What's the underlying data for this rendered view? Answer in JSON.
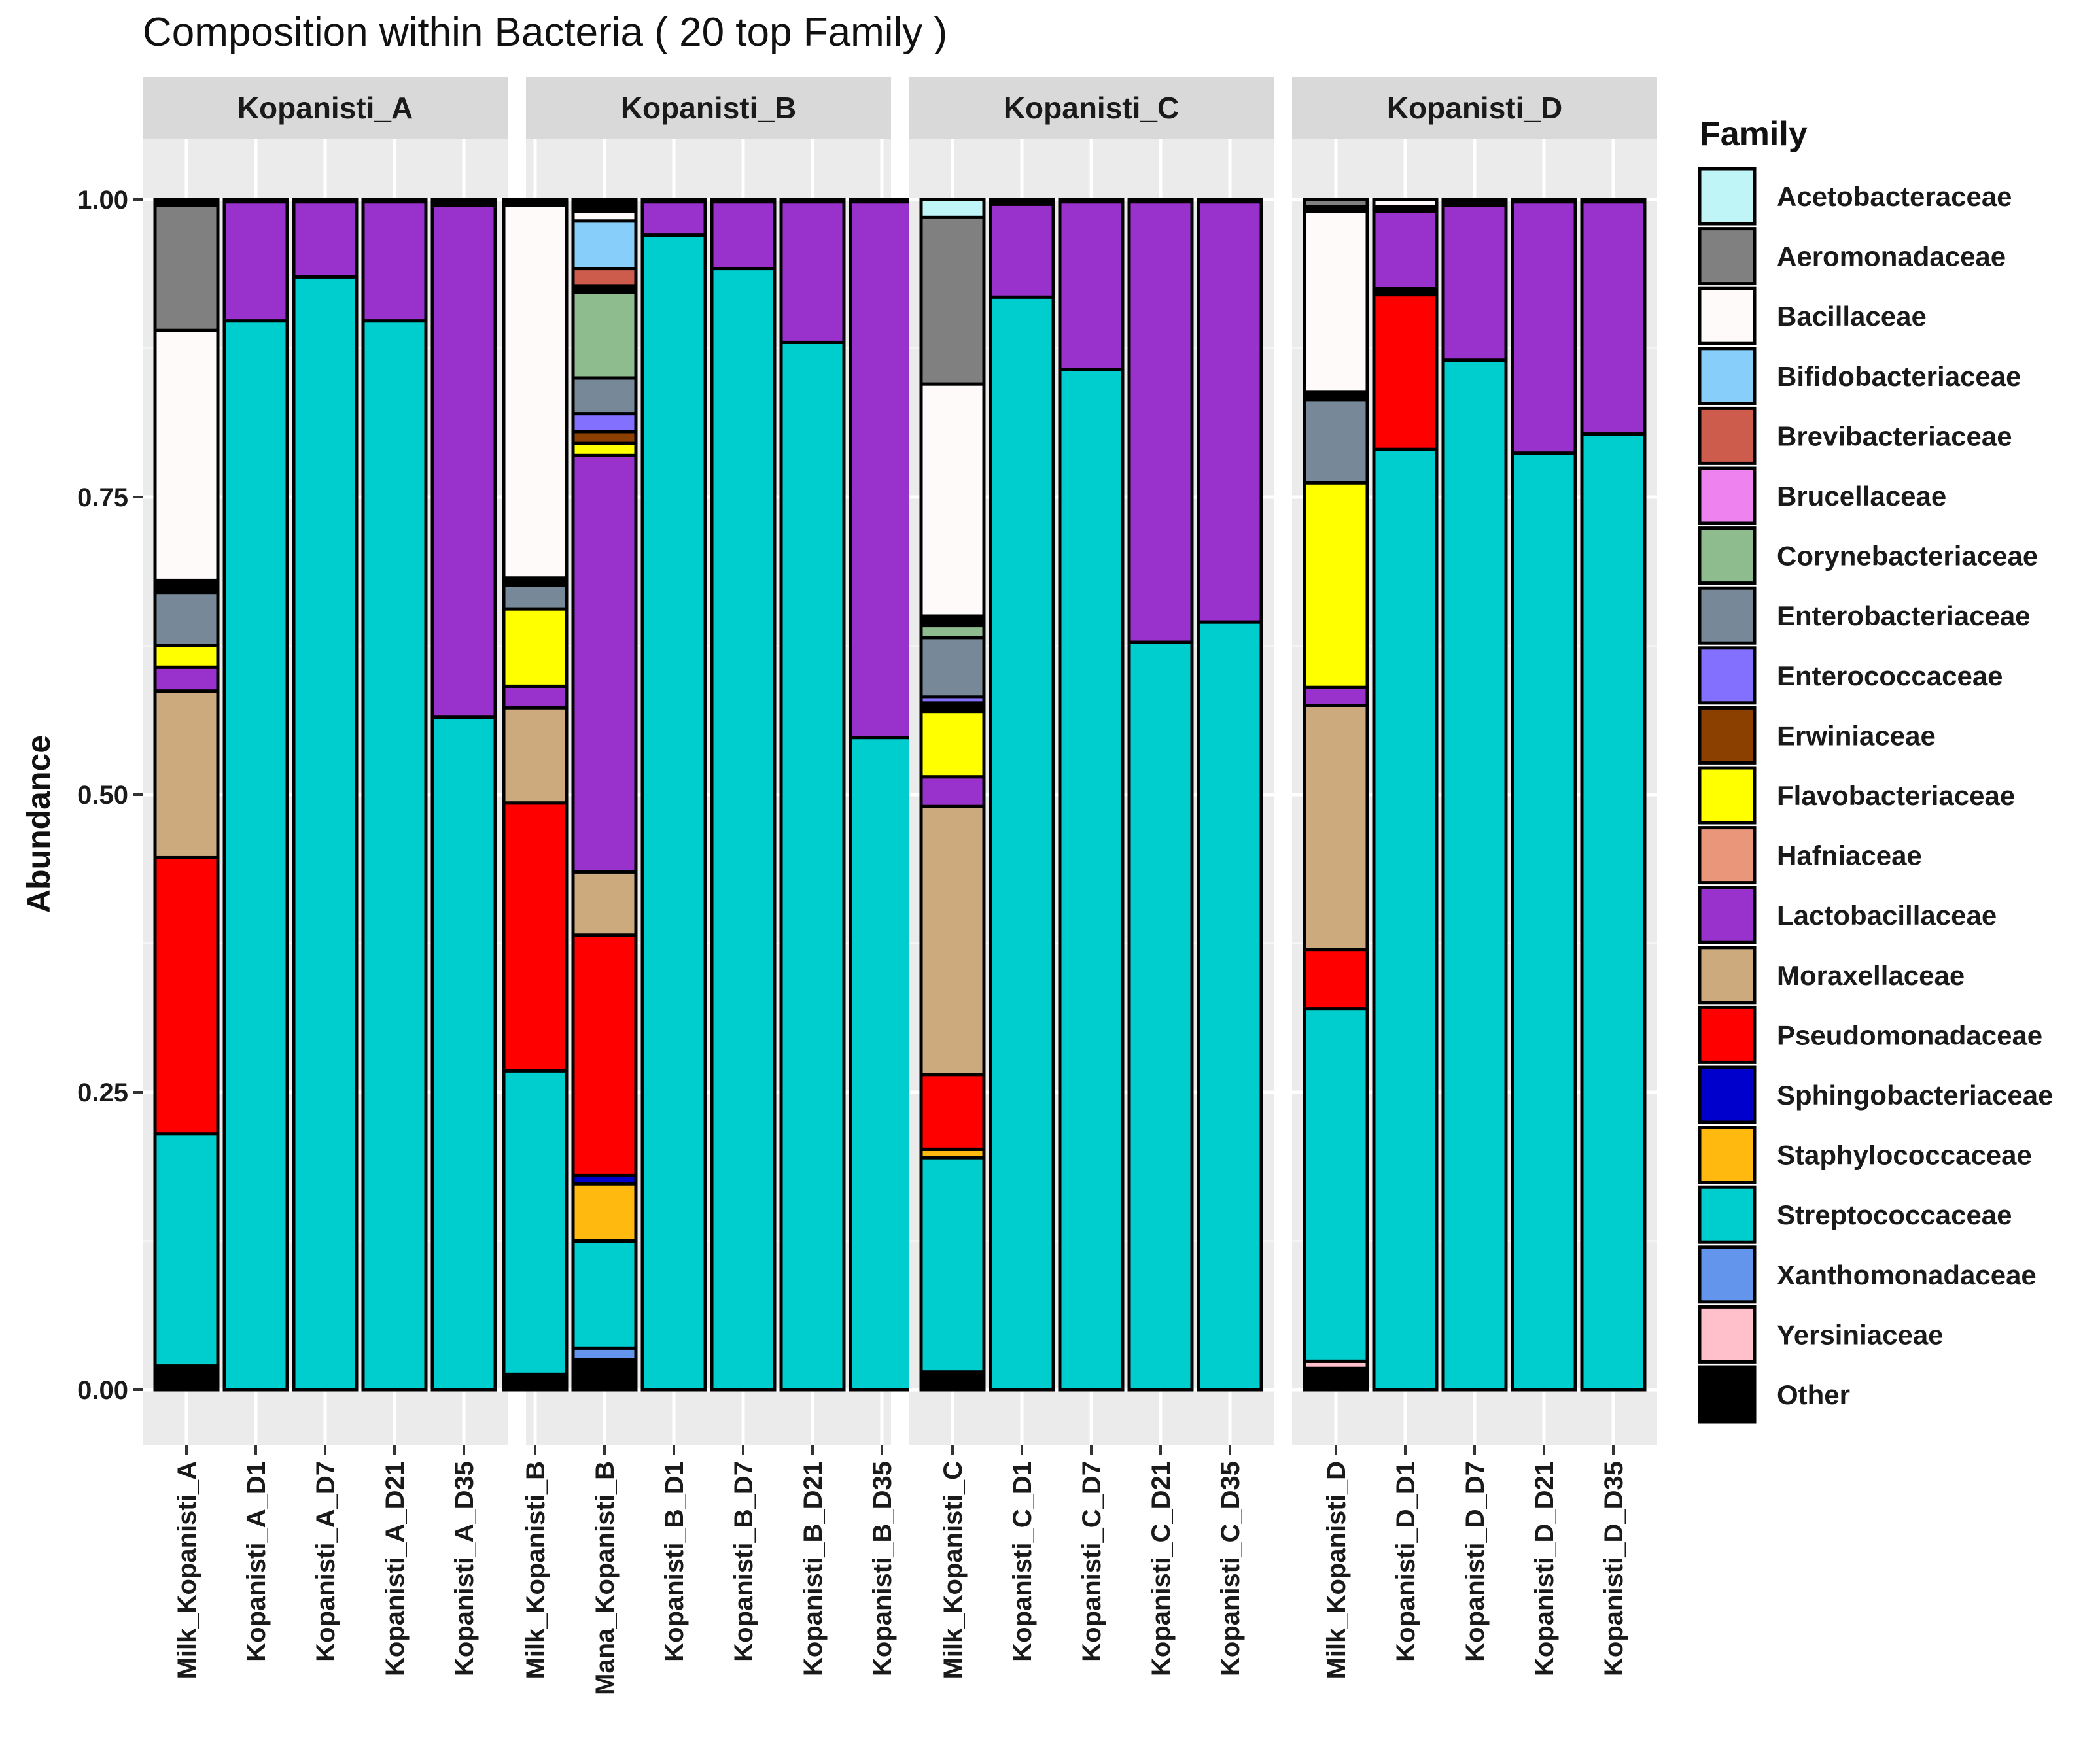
{
  "chart_data": {
    "type": "bar",
    "stacked": true,
    "title": "Composition within Bacteria ( 20 top Family )",
    "ylabel": "Abundance",
    "xlabel": "",
    "ylim": [
      0,
      1
    ],
    "yticks": [
      0,
      0.25,
      0.5,
      0.75,
      1
    ],
    "ytick_labels": [
      "0.00",
      "0.25",
      "0.50",
      "0.75",
      "1.00"
    ],
    "legend_title": "Family",
    "legend_position": "right",
    "families": [
      {
        "name": "Acetobacteraceae",
        "color": "#bff5f7"
      },
      {
        "name": "Aeromonadaceae",
        "color": "#808080"
      },
      {
        "name": "Bacillaceae",
        "color": "#fffafa"
      },
      {
        "name": "Bifidobacteriaceae",
        "color": "#87cefa"
      },
      {
        "name": "Brevibacteriaceae",
        "color": "#cd5c4c"
      },
      {
        "name": "Brucellaceae",
        "color": "#ee82ee"
      },
      {
        "name": "Corynebacteriaceae",
        "color": "#8fbc8f"
      },
      {
        "name": "Enterobacteriaceae",
        "color": "#778899"
      },
      {
        "name": "Enterococcaceae",
        "color": "#8470ff"
      },
      {
        "name": "Erwiniaceae",
        "color": "#8b4000"
      },
      {
        "name": "Flavobacteriaceae",
        "color": "#ffff00"
      },
      {
        "name": "Hafniaceae",
        "color": "#e9967a"
      },
      {
        "name": "Lactobacillaceae",
        "color": "#9932cc"
      },
      {
        "name": "Moraxellaceae",
        "color": "#cdaa7d"
      },
      {
        "name": "Pseudomonadaceae",
        "color": "#ff0000"
      },
      {
        "name": "Sphingobacteriaceae",
        "color": "#0000cd"
      },
      {
        "name": "Staphylococcaceae",
        "color": "#ffb90f"
      },
      {
        "name": "Streptococcaceae",
        "color": "#00cdcd"
      },
      {
        "name": "Xanthomonadaceae",
        "color": "#6495ed"
      },
      {
        "name": "Yersiniaceae",
        "color": "#ffc0cb"
      },
      {
        "name": "Other",
        "color": "#000000"
      }
    ],
    "panels": [
      {
        "strip": "Kopanisti_A",
        "samples": [
          {
            "label": "Milk_Kopanisti_A",
            "segments": [
              [
                "Other",
                0.02
              ],
              [
                "Streptococcaceae",
                0.195
              ],
              [
                "Pseudomonadaceae",
                0.232
              ],
              [
                "Moraxellaceae",
                0.14
              ],
              [
                "Lactobacillaceae",
                0.02
              ],
              [
                "Flavobacteriaceae",
                0.018
              ],
              [
                "Enterobacteriaceae",
                0.045
              ],
              [
                "Other",
                0.01
              ],
              [
                "Bacillaceae",
                0.21
              ],
              [
                "Aeromonadaceae",
                0.105
              ],
              [
                "Other",
                0.005
              ]
            ]
          },
          {
            "label": "Kopanisti_A_D1",
            "segments": [
              [
                "Streptococcaceae",
                0.898
              ],
              [
                "Lactobacillaceae",
                0.1
              ],
              [
                "Other",
                0.002
              ]
            ]
          },
          {
            "label": "Kopanisti_A_D7",
            "segments": [
              [
                "Streptococcaceae",
                0.935
              ],
              [
                "Lactobacillaceae",
                0.063
              ],
              [
                "Other",
                0.002
              ]
            ]
          },
          {
            "label": "Kopanisti_A_D21",
            "segments": [
              [
                "Streptococcaceae",
                0.898
              ],
              [
                "Lactobacillaceae",
                0.1
              ],
              [
                "Other",
                0.002
              ]
            ]
          },
          {
            "label": "Kopanisti_A_D35",
            "segments": [
              [
                "Streptococcaceae",
                0.565
              ],
              [
                "Lactobacillaceae",
                0.43
              ],
              [
                "Other",
                0.005
              ]
            ]
          }
        ]
      },
      {
        "strip": "Kopanisti_B",
        "samples": [
          {
            "label": "Milk_Kopanisti_B",
            "segments": [
              [
                "Other",
                0.013
              ],
              [
                "Streptococcaceae",
                0.255
              ],
              [
                "Pseudomonadaceae",
                0.225
              ],
              [
                "Moraxellaceae",
                0.08
              ],
              [
                "Lactobacillaceae",
                0.018
              ],
              [
                "Flavobacteriaceae",
                0.065
              ],
              [
                "Enterobacteriaceae",
                0.02
              ],
              [
                "Other",
                0.006
              ],
              [
                "Bacillaceae",
                0.313
              ],
              [
                "Other",
                0.005
              ]
            ]
          },
          {
            "label": "Mana_Kopanisti_B",
            "segments": [
              [
                "Other",
                0.025
              ],
              [
                "Xanthomonadaceae",
                0.01
              ],
              [
                "Streptococcaceae",
                0.09
              ],
              [
                "Staphylococcaceae",
                0.048
              ],
              [
                "Sphingobacteriaceae",
                0.007
              ],
              [
                "Pseudomonadaceae",
                0.202
              ],
              [
                "Moraxellaceae",
                0.053
              ],
              [
                "Lactobacillaceae",
                0.35
              ],
              [
                "Flavobacteriaceae",
                0.01
              ],
              [
                "Erwiniaceae",
                0.01
              ],
              [
                "Enterococcaceae",
                0.015
              ],
              [
                "Enterobacteriaceae",
                0.03
              ],
              [
                "Corynebacteriaceae",
                0.072
              ],
              [
                "Other",
                0.005
              ],
              [
                "Brevibacteriaceae",
                0.015
              ],
              [
                "Bifidobacteriaceae",
                0.04
              ],
              [
                "Bacillaceae",
                0.008
              ],
              [
                "Other",
                0.01
              ]
            ]
          },
          {
            "label": "Kopanisti_B_D1",
            "segments": [
              [
                "Streptococcaceae",
                0.97
              ],
              [
                "Lactobacillaceae",
                0.028
              ],
              [
                "Other",
                0.002
              ]
            ]
          },
          {
            "label": "Kopanisti_B_D7",
            "segments": [
              [
                "Streptococcaceae",
                0.942
              ],
              [
                "Lactobacillaceae",
                0.056
              ],
              [
                "Other",
                0.002
              ]
            ]
          },
          {
            "label": "Kopanisti_B_D21",
            "segments": [
              [
                "Streptococcaceae",
                0.88
              ],
              [
                "Lactobacillaceae",
                0.118
              ],
              [
                "Other",
                0.002
              ]
            ]
          },
          {
            "label": "Kopanisti_B_D35",
            "segments": [
              [
                "Streptococcaceae",
                0.548
              ],
              [
                "Lactobacillaceae",
                0.45
              ],
              [
                "Other",
                0.002
              ]
            ]
          }
        ]
      },
      {
        "strip": "Kopanisti_C",
        "samples": [
          {
            "label": "Milk_Kopanisti_C",
            "segments": [
              [
                "Other",
                0.015
              ],
              [
                "Streptococcaceae",
                0.18
              ],
              [
                "Staphylococcaceae",
                0.007
              ],
              [
                "Pseudomonadaceae",
                0.063
              ],
              [
                "Moraxellaceae",
                0.225
              ],
              [
                "Lactobacillaceae",
                0.025
              ],
              [
                "Flavobacteriaceae",
                0.055
              ],
              [
                "Other",
                0.007
              ],
              [
                "Enterococcaceae",
                0.005
              ],
              [
                "Enterobacteriaceae",
                0.05
              ],
              [
                "Corynebacteriaceae",
                0.01
              ],
              [
                "Other",
                0.008
              ],
              [
                "Bacillaceae",
                0.195
              ],
              [
                "Aeromonadaceae",
                0.14
              ],
              [
                "Acetobacteraceae",
                0.015
              ]
            ]
          },
          {
            "label": "Kopanisti_C_D1",
            "segments": [
              [
                "Streptococcaceae",
                0.918
              ],
              [
                "Lactobacillaceae",
                0.078
              ],
              [
                "Other",
                0.004
              ]
            ]
          },
          {
            "label": "Kopanisti_C_D7",
            "segments": [
              [
                "Streptococcaceae",
                0.857
              ],
              [
                "Lactobacillaceae",
                0.141
              ],
              [
                "Other",
                0.002
              ]
            ]
          },
          {
            "label": "Kopanisti_C_D21",
            "segments": [
              [
                "Streptococcaceae",
                0.628
              ],
              [
                "Lactobacillaceae",
                0.37
              ],
              [
                "Other",
                0.002
              ]
            ]
          },
          {
            "label": "Kopanisti_C_D35",
            "segments": [
              [
                "Streptococcaceae",
                0.645
              ],
              [
                "Lactobacillaceae",
                0.353
              ],
              [
                "Other",
                0.002
              ]
            ]
          }
        ]
      },
      {
        "strip": "Kopanisti_D",
        "samples": [
          {
            "label": "Milk_Kopanisti_D",
            "segments": [
              [
                "Other",
                0.018
              ],
              [
                "Yersiniaceae",
                0.006
              ],
              [
                "Streptococcaceae",
                0.296
              ],
              [
                "Pseudomonadaceae",
                0.05
              ],
              [
                "Moraxellaceae",
                0.205
              ],
              [
                "Lactobacillaceae",
                0.015
              ],
              [
                "Flavobacteriaceae",
                0.172
              ],
              [
                "Enterobacteriaceae",
                0.07
              ],
              [
                "Other",
                0.006
              ],
              [
                "Bacillaceae",
                0.152
              ],
              [
                "Other",
                0.004
              ],
              [
                "Aeromonadaceae",
                0.006
              ]
            ]
          },
          {
            "label": "Kopanisti_D_D1",
            "segments": [
              [
                "Streptococcaceae",
                0.79
              ],
              [
                "Pseudomonadaceae",
                0.13
              ],
              [
                "Other",
                0.005
              ],
              [
                "Lactobacillaceae",
                0.065
              ],
              [
                "Other",
                0.004
              ],
              [
                "Bacillaceae",
                0.006
              ]
            ]
          },
          {
            "label": "Kopanisti_D_D7",
            "segments": [
              [
                "Streptococcaceae",
                0.865
              ],
              [
                "Lactobacillaceae",
                0.13
              ],
              [
                "Other",
                0.005
              ]
            ]
          },
          {
            "label": "Kopanisti_D_D21",
            "segments": [
              [
                "Streptococcaceae",
                0.787
              ],
              [
                "Lactobacillaceae",
                0.211
              ],
              [
                "Other",
                0.002
              ]
            ]
          },
          {
            "label": "Kopanisti_D_D35",
            "segments": [
              [
                "Streptococcaceae",
                0.803
              ],
              [
                "Lactobacillaceae",
                0.195
              ],
              [
                "Other",
                0.002
              ]
            ]
          }
        ]
      }
    ]
  }
}
